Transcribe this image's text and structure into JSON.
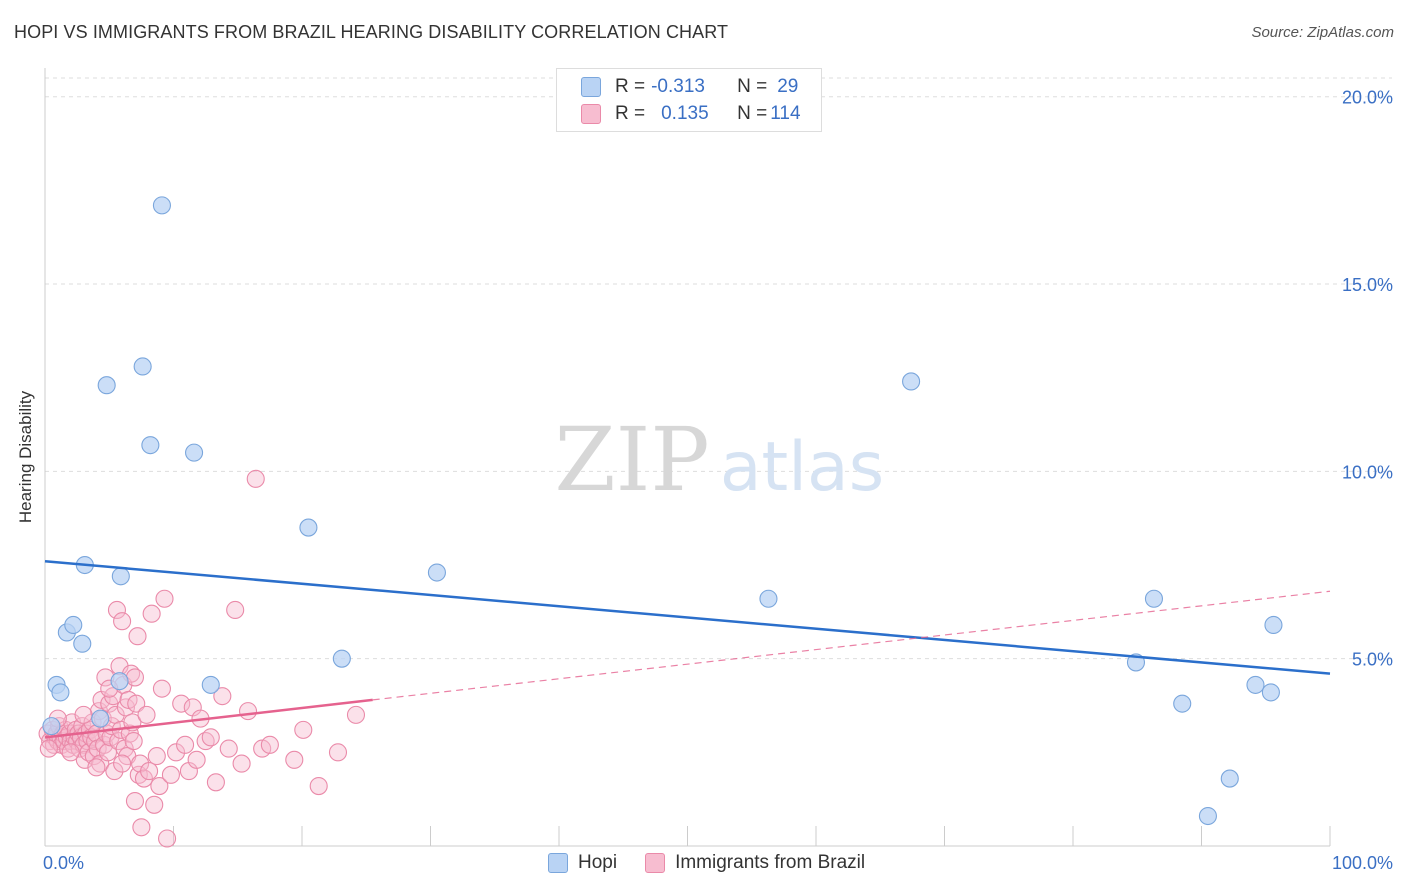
{
  "header": {
    "title": "HOPI VS IMMIGRANTS FROM BRAZIL HEARING DISABILITY CORRELATION CHART",
    "source": "Source: ZipAtlas.com"
  },
  "watermark": {
    "zip": "ZIP",
    "atlas": "atlas"
  },
  "legend": {
    "hopi": {
      "r_label": "R =",
      "r_value": "-0.313",
      "n_label": "N =",
      "n_value": "29"
    },
    "brazil": {
      "r_label": "R =",
      "r_value": "0.135",
      "n_label": "N =",
      "n_value": "114"
    }
  },
  "colors": {
    "hopi_fill": "#b9d3f4",
    "hopi_stroke": "#7aa6dc",
    "hopi_line": "#2b6fcb",
    "brazil_fill": "#f7bdd0",
    "brazil_stroke": "#ea8aa9",
    "brazil_line": "#e5628e",
    "grid": "#dddddd",
    "tick_label": "#3a6fc4"
  },
  "chart_data": {
    "type": "scatter",
    "title": "HOPI VS IMMIGRANTS FROM BRAZIL HEARING DISABILITY CORRELATION CHART",
    "xlabel": "",
    "ylabel": "Hearing Disability",
    "xlim": [
      0,
      100
    ],
    "ylim": [
      0,
      20.5
    ],
    "x_tick_labels": [
      "0.0%",
      "100.0%"
    ],
    "y_ticks": [
      5,
      10,
      15,
      20
    ],
    "y_tick_labels": [
      "5.0%",
      "10.0%",
      "15.0%",
      "20.0%"
    ],
    "series": [
      {
        "name": "Hopi",
        "r": -0.313,
        "n": 29,
        "trend": {
          "x": [
            0,
            100
          ],
          "y": [
            7.6,
            4.6
          ]
        },
        "points": [
          [
            0.5,
            3.2
          ],
          [
            0.9,
            4.3
          ],
          [
            1.2,
            4.1
          ],
          [
            1.7,
            5.7
          ],
          [
            2.2,
            5.9
          ],
          [
            2.9,
            5.4
          ],
          [
            3.1,
            7.5
          ],
          [
            4.3,
            3.4
          ],
          [
            5.8,
            4.4
          ],
          [
            5.9,
            7.2
          ],
          [
            4.8,
            12.3
          ],
          [
            7.6,
            12.8
          ],
          [
            8.2,
            10.7
          ],
          [
            9.1,
            17.1
          ],
          [
            11.6,
            10.5
          ],
          [
            12.9,
            4.3
          ],
          [
            20.5,
            8.5
          ],
          [
            23.1,
            5.0
          ],
          [
            30.5,
            7.3
          ],
          [
            56.3,
            6.6
          ],
          [
            67.4,
            12.4
          ],
          [
            84.9,
            4.9
          ],
          [
            86.3,
            6.6
          ],
          [
            88.5,
            3.8
          ],
          [
            90.5,
            0.8
          ],
          [
            92.2,
            1.8
          ],
          [
            94.2,
            4.3
          ],
          [
            95.4,
            4.1
          ],
          [
            95.6,
            5.9
          ]
        ]
      },
      {
        "name": "Immigrants from Brazil",
        "r": 0.135,
        "n": 114,
        "trend": {
          "x": [
            0,
            25.5
          ],
          "y": [
            2.9,
            3.9
          ]
        },
        "trend_extended": {
          "x": [
            25.5,
            100
          ],
          "y": [
            3.9,
            6.8
          ]
        },
        "points": [
          [
            0.2,
            3.0
          ],
          [
            0.4,
            2.8
          ],
          [
            0.6,
            3.1
          ],
          [
            0.7,
            2.7
          ],
          [
            0.8,
            2.9
          ],
          [
            0.9,
            3.0
          ],
          [
            1.0,
            2.8
          ],
          [
            1.1,
            3.2
          ],
          [
            1.2,
            2.9
          ],
          [
            1.3,
            2.7
          ],
          [
            1.4,
            3.0
          ],
          [
            1.5,
            2.8
          ],
          [
            1.6,
            3.1
          ],
          [
            1.7,
            2.9
          ],
          [
            1.8,
            2.6
          ],
          [
            1.9,
            3.0
          ],
          [
            2.0,
            2.8
          ],
          [
            2.1,
            3.3
          ],
          [
            2.2,
            2.7
          ],
          [
            2.3,
            2.9
          ],
          [
            2.4,
            3.1
          ],
          [
            2.5,
            2.8
          ],
          [
            2.6,
            3.0
          ],
          [
            2.7,
            2.6
          ],
          [
            2.8,
            2.9
          ],
          [
            2.9,
            3.2
          ],
          [
            3.0,
            2.7
          ],
          [
            3.1,
            2.3
          ],
          [
            3.2,
            3.0
          ],
          [
            3.3,
            2.8
          ],
          [
            3.4,
            2.5
          ],
          [
            3.5,
            3.1
          ],
          [
            3.6,
            2.9
          ],
          [
            3.7,
            3.3
          ],
          [
            3.8,
            2.4
          ],
          [
            3.9,
            2.8
          ],
          [
            4.0,
            3.0
          ],
          [
            4.1,
            2.6
          ],
          [
            4.2,
            3.6
          ],
          [
            4.3,
            2.2
          ],
          [
            4.4,
            3.9
          ],
          [
            4.5,
            3.4
          ],
          [
            4.6,
            2.7
          ],
          [
            4.7,
            4.5
          ],
          [
            4.8,
            3.0
          ],
          [
            4.9,
            2.5
          ],
          [
            5.0,
            3.8
          ],
          [
            5.1,
            2.9
          ],
          [
            5.2,
            3.2
          ],
          [
            5.3,
            4.0
          ],
          [
            5.4,
            2.0
          ],
          [
            5.5,
            3.5
          ],
          [
            5.6,
            6.3
          ],
          [
            5.7,
            2.8
          ],
          [
            5.8,
            4.8
          ],
          [
            5.9,
            3.1
          ],
          [
            6.0,
            6.0
          ],
          [
            6.1,
            4.3
          ],
          [
            6.2,
            2.6
          ],
          [
            6.3,
            3.7
          ],
          [
            6.4,
            2.4
          ],
          [
            6.5,
            3.9
          ],
          [
            6.6,
            3.0
          ],
          [
            6.7,
            4.6
          ],
          [
            6.8,
            3.3
          ],
          [
            6.9,
            2.8
          ],
          [
            7.0,
            1.2
          ],
          [
            7.1,
            3.8
          ],
          [
            7.2,
            5.6
          ],
          [
            7.3,
            1.9
          ],
          [
            7.4,
            2.2
          ],
          [
            7.5,
            0.5
          ],
          [
            7.7,
            1.8
          ],
          [
            7.9,
            3.5
          ],
          [
            8.1,
            2.0
          ],
          [
            8.3,
            6.2
          ],
          [
            8.5,
            1.1
          ],
          [
            8.7,
            2.4
          ],
          [
            8.9,
            1.6
          ],
          [
            9.1,
            4.2
          ],
          [
            9.3,
            6.6
          ],
          [
            9.5,
            0.2
          ],
          [
            9.8,
            1.9
          ],
          [
            10.2,
            2.5
          ],
          [
            10.6,
            3.8
          ],
          [
            10.9,
            2.7
          ],
          [
            11.2,
            2.0
          ],
          [
            11.5,
            3.7
          ],
          [
            11.8,
            2.3
          ],
          [
            12.1,
            3.4
          ],
          [
            12.5,
            2.8
          ],
          [
            12.9,
            2.9
          ],
          [
            13.3,
            1.7
          ],
          [
            13.8,
            4.0
          ],
          [
            14.3,
            2.6
          ],
          [
            14.8,
            6.3
          ],
          [
            15.3,
            2.2
          ],
          [
            15.8,
            3.6
          ],
          [
            16.4,
            9.8
          ],
          [
            16.9,
            2.6
          ],
          [
            17.5,
            2.7
          ],
          [
            19.4,
            2.3
          ],
          [
            20.1,
            3.1
          ],
          [
            21.3,
            1.6
          ],
          [
            22.8,
            2.5
          ],
          [
            24.2,
            3.5
          ],
          [
            0.3,
            2.6
          ],
          [
            1.0,
            3.4
          ],
          [
            2.0,
            2.5
          ],
          [
            3.0,
            3.5
          ],
          [
            4.0,
            2.1
          ],
          [
            5.0,
            4.2
          ],
          [
            6.0,
            2.2
          ],
          [
            7.0,
            4.5
          ]
        ]
      }
    ]
  },
  "bottom_legend": {
    "hopi": "Hopi",
    "brazil": "Immigrants from Brazil"
  }
}
